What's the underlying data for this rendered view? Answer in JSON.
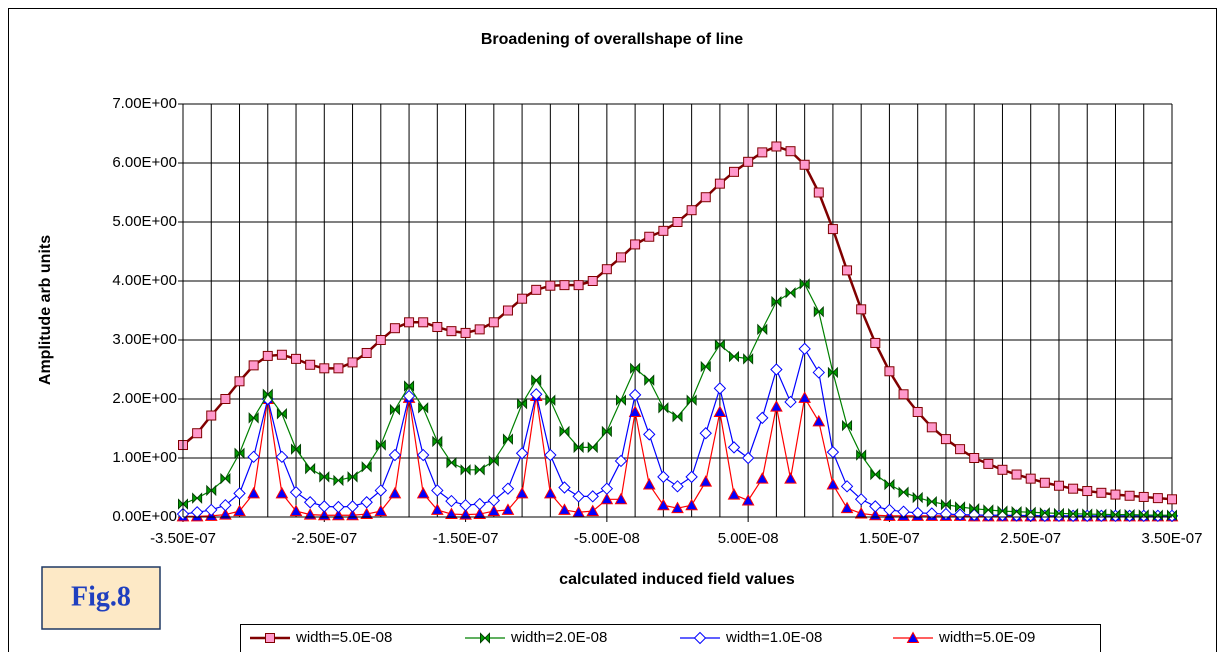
{
  "chart_data": {
    "type": "line",
    "title": "Broadening of overallshape of line",
    "x_label": "calculated induced field values",
    "y_label": "Amplitude arb units",
    "annotation": "Fig.8",
    "categories": [
      "-3.50E-07",
      null,
      null,
      null,
      null,
      null,
      null,
      null,
      null,
      null,
      "-2.50E-07",
      null,
      null,
      null,
      null,
      null,
      null,
      null,
      null,
      null,
      "-1.50E-07",
      null,
      null,
      null,
      null,
      null,
      null,
      null,
      null,
      null,
      "-5.00E-08",
      null,
      null,
      null,
      null,
      null,
      null,
      null,
      null,
      null,
      "5.00E-08",
      null,
      null,
      null,
      null,
      null,
      null,
      null,
      null,
      null,
      "1.50E-07",
      null,
      null,
      null,
      null,
      null,
      null,
      null,
      null,
      null,
      "2.50E-07",
      null,
      null,
      null,
      null,
      null,
      null,
      null,
      null,
      null,
      "3.50E-07"
    ],
    "ylim": [
      0,
      7
    ],
    "yticks": [
      {
        "value": 0,
        "label": "0.00E+00"
      },
      {
        "value": 1,
        "label": "1.00E+00"
      },
      {
        "value": 2,
        "label": "2.00E+00"
      },
      {
        "value": 3,
        "label": "3.00E+00"
      },
      {
        "value": 4,
        "label": "4.00E+00"
      },
      {
        "value": 5,
        "label": "5.00E+00"
      },
      {
        "value": 6,
        "label": "6.00E+00"
      },
      {
        "value": 7,
        "label": "7.00E+00"
      }
    ],
    "grid": true,
    "legend": "bottom",
    "series": [
      {
        "name": "width=5.0E-08",
        "color": "#800000",
        "marker": "square",
        "marker_fill": "#ff99cc",
        "values": [
          1.22,
          1.42,
          1.72,
          2.0,
          2.3,
          2.57,
          2.73,
          2.75,
          2.68,
          2.58,
          2.52,
          2.52,
          2.62,
          2.78,
          3.0,
          3.2,
          3.3,
          3.3,
          3.22,
          3.15,
          3.12,
          3.18,
          3.3,
          3.5,
          3.7,
          3.85,
          3.92,
          3.93,
          3.93,
          4.0,
          4.2,
          4.4,
          4.62,
          4.75,
          4.85,
          5.0,
          5.2,
          5.42,
          5.65,
          5.85,
          6.02,
          6.18,
          6.28,
          6.2,
          5.97,
          5.5,
          4.88,
          4.18,
          3.52,
          2.95,
          2.47,
          2.08,
          1.78,
          1.52,
          1.32,
          1.15,
          1.0,
          0.9,
          0.8,
          0.72,
          0.65,
          0.58,
          0.53,
          0.48,
          0.44,
          0.41,
          0.38,
          0.36,
          0.34,
          0.32,
          0.3
        ]
      },
      {
        "name": "width=2.0E-08",
        "color": "#008000",
        "marker": "bowtie",
        "marker_fill": "#00a000",
        "values": [
          0.22,
          0.32,
          0.45,
          0.65,
          1.08,
          1.68,
          2.08,
          1.75,
          1.15,
          0.82,
          0.68,
          0.62,
          0.68,
          0.85,
          1.22,
          1.82,
          2.22,
          1.85,
          1.28,
          0.92,
          0.8,
          0.8,
          0.95,
          1.32,
          1.92,
          2.32,
          1.98,
          1.45,
          1.18,
          1.18,
          1.45,
          1.98,
          2.52,
          2.32,
          1.85,
          1.7,
          1.98,
          2.55,
          2.92,
          2.72,
          2.68,
          3.18,
          3.65,
          3.8,
          3.95,
          3.48,
          2.45,
          1.55,
          1.05,
          0.72,
          0.55,
          0.42,
          0.33,
          0.26,
          0.21,
          0.17,
          0.14,
          0.12,
          0.1,
          0.09,
          0.08,
          0.07,
          0.06,
          0.055,
          0.05,
          0.045,
          0.04,
          0.04,
          0.035,
          0.03,
          0.03
        ]
      },
      {
        "name": "width=1.0E-08",
        "color": "#0000ff",
        "marker": "diamond",
        "marker_fill": "#ffffff",
        "values": [
          0.05,
          0.08,
          0.12,
          0.2,
          0.4,
          1.02,
          2.0,
          1.02,
          0.42,
          0.25,
          0.18,
          0.17,
          0.18,
          0.25,
          0.45,
          1.05,
          2.05,
          1.05,
          0.45,
          0.27,
          0.2,
          0.22,
          0.28,
          0.48,
          1.08,
          2.08,
          1.05,
          0.5,
          0.35,
          0.35,
          0.48,
          0.95,
          2.07,
          1.4,
          0.68,
          0.52,
          0.68,
          1.42,
          2.18,
          1.18,
          1.0,
          1.68,
          2.5,
          1.95,
          2.85,
          2.45,
          1.1,
          0.52,
          0.3,
          0.18,
          0.12,
          0.09,
          0.07,
          0.06,
          0.05,
          0.04,
          0.035,
          0.03,
          0.03,
          0.025,
          0.025,
          0.02,
          0.02,
          0.02,
          0.02,
          0.02,
          0.02,
          0.02,
          0.02,
          0.02,
          0.02
        ]
      },
      {
        "name": "width=5.0E-09",
        "color": "#ff0000",
        "marker": "triangle",
        "marker_fill": "#0000ff",
        "values": [
          0.01,
          0.01,
          0.02,
          0.04,
          0.1,
          0.4,
          2.0,
          0.4,
          0.1,
          0.04,
          0.03,
          0.03,
          0.03,
          0.05,
          0.1,
          0.4,
          2.02,
          0.4,
          0.12,
          0.05,
          0.04,
          0.05,
          0.1,
          0.12,
          0.4,
          2.05,
          0.4,
          0.12,
          0.08,
          0.1,
          0.3,
          0.3,
          1.78,
          0.55,
          0.2,
          0.15,
          0.2,
          0.6,
          1.78,
          0.38,
          0.28,
          0.65,
          1.87,
          0.65,
          2.02,
          1.62,
          0.55,
          0.15,
          0.06,
          0.03,
          0.02,
          0.02,
          0.02,
          0.02,
          0.02,
          0.02,
          0.01,
          0.01,
          0.01,
          0.01,
          0.01,
          0.01,
          0.01,
          0.01,
          0.01,
          0.01,
          0.01,
          0.01,
          0.01,
          0.01,
          0.01
        ]
      }
    ]
  }
}
